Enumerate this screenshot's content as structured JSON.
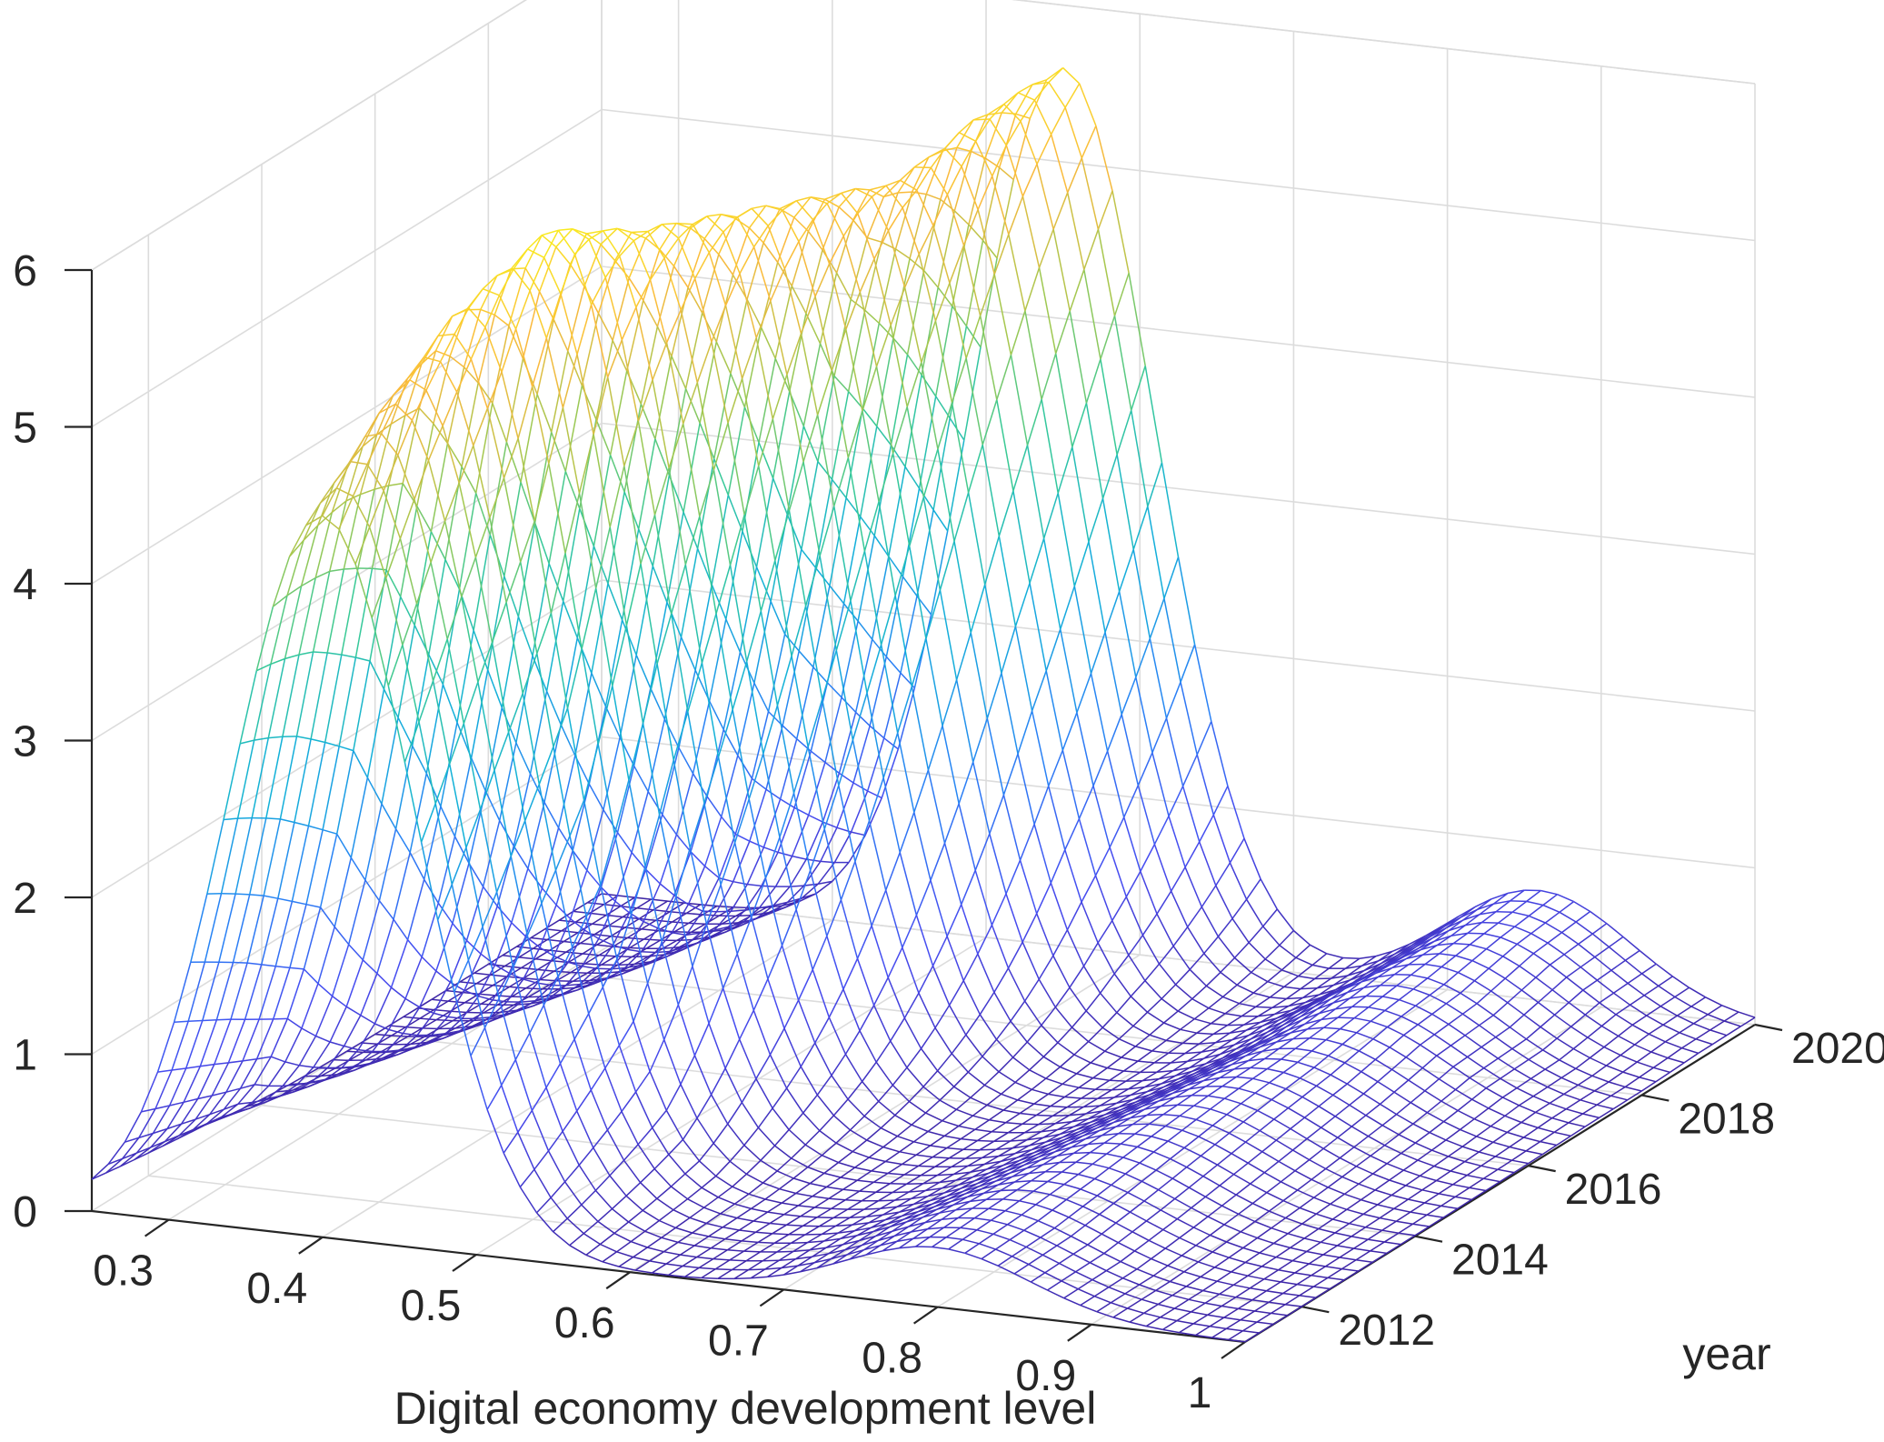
{
  "chart_data": {
    "type": "surface",
    "title": "",
    "xlabel": "Digital economy development level",
    "ylabel": "year",
    "zlabel": "",
    "xlim": [
      0.25,
      1.0
    ],
    "ylim": [
      2011,
      2020
    ],
    "zlim": [
      0,
      6
    ],
    "x_ticks": [
      "0.3",
      "0.4",
      "0.5",
      "0.6",
      "0.7",
      "0.8",
      "0.9",
      "1"
    ],
    "y_ticks": [
      "2012",
      "2014",
      "2016",
      "2018",
      "2020"
    ],
    "z_ticks": [
      "0",
      "1",
      "2",
      "3",
      "4",
      "5",
      "6"
    ],
    "grid": true,
    "colormap": "parula",
    "years": [
      2011,
      2012,
      2013,
      2014,
      2015,
      2016,
      2017,
      2018,
      2019,
      2020
    ],
    "series": [
      {
        "name": "2011",
        "peak_position": 0.4,
        "peak_height": 4.6,
        "secondary_peak_position": 0.8,
        "secondary_height": 0.38
      },
      {
        "name": "2012",
        "peak_position": 0.41,
        "peak_height": 5.1,
        "secondary_peak_position": 0.8,
        "secondary_height": 0.4
      },
      {
        "name": "2013",
        "peak_position": 0.42,
        "peak_height": 5.5,
        "secondary_peak_position": 0.81,
        "secondary_height": 0.42
      },
      {
        "name": "2014",
        "peak_position": 0.44,
        "peak_height": 5.8,
        "secondary_peak_position": 0.82,
        "secondary_height": 0.45
      },
      {
        "name": "2015",
        "peak_position": 0.46,
        "peak_height": 5.6,
        "secondary_peak_position": 0.83,
        "secondary_height": 0.48
      },
      {
        "name": "2016",
        "peak_position": 0.48,
        "peak_height": 5.5,
        "secondary_peak_position": 0.84,
        "secondary_height": 0.5
      },
      {
        "name": "2017",
        "peak_position": 0.5,
        "peak_height": 5.4,
        "secondary_peak_position": 0.85,
        "secondary_height": 0.55
      },
      {
        "name": "2018",
        "peak_position": 0.52,
        "peak_height": 5.3,
        "secondary_peak_position": 0.85,
        "secondary_height": 0.6
      },
      {
        "name": "2019",
        "peak_position": 0.535,
        "peak_height": 5.5,
        "secondary_peak_position": 0.86,
        "secondary_height": 0.65
      },
      {
        "name": "2020",
        "peak_position": 0.55,
        "peak_height": 5.6,
        "secondary_peak_position": 0.86,
        "secondary_height": 0.7
      }
    ],
    "peak_width": 0.06,
    "secondary_width": 0.06
  }
}
